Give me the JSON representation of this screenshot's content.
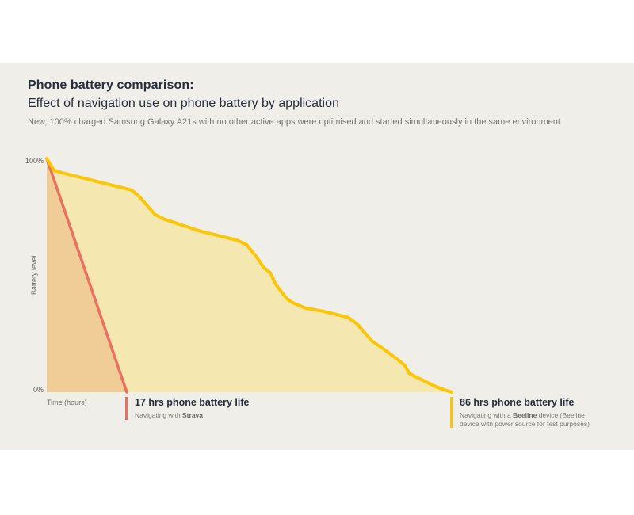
{
  "header": {
    "title": "Phone battery comparison:",
    "subtitle": "Effect of navigation use on phone battery by application",
    "description": "New, 100% charged Samsung Galaxy A21s with no other active apps were optimised and started simultaneously in the same environment."
  },
  "colors": {
    "panel_background": "#F0EEE8",
    "heading_text": "#272D3D",
    "muted_text": "#76756E",
    "strava_line": "#ED6F5F",
    "strava_fill": "#F0CC96",
    "beeline_line": "#FDC504",
    "beeline_fill": "#F4E7AF"
  },
  "chart_data": {
    "type": "area",
    "title": "Phone battery comparison: Effect of navigation use on phone battery by application",
    "xlabel": "Time (hours)",
    "ylabel": "Battery level",
    "x_axis": {
      "min": 0,
      "max": 86
    },
    "y_axis": {
      "min": 0,
      "max": 100,
      "top_tick_label": "100%",
      "bottom_tick_label": "0%"
    },
    "grid": false,
    "legend_position": "below-axis-end-labels",
    "series": [
      {
        "name": "Strava",
        "line_color": "#ED6F5F",
        "fill_color": "#F0CC96",
        "end_hour": 17,
        "points_hours_percent": [
          [
            0,
            100
          ],
          [
            17,
            0
          ]
        ],
        "label": {
          "title": "17 hrs phone battery life",
          "sub_prefix": "Navigating with ",
          "sub_bold": "Strava",
          "sub_suffix": ""
        }
      },
      {
        "name": "Beeline",
        "line_color": "#FDC504",
        "fill_color": "#F4E7AF",
        "end_hour": 86,
        "points_hours_percent": [
          [
            0,
            100
          ],
          [
            1.5,
            95
          ],
          [
            3,
            94
          ],
          [
            18,
            86.5
          ],
          [
            19.5,
            84
          ],
          [
            23,
            76
          ],
          [
            25,
            74
          ],
          [
            32.5,
            69
          ],
          [
            40.5,
            65
          ],
          [
            42.5,
            63
          ],
          [
            44.5,
            58
          ],
          [
            46,
            53.5
          ],
          [
            47.5,
            51
          ],
          [
            48.5,
            46.5
          ],
          [
            50,
            42.5
          ],
          [
            51,
            40
          ],
          [
            52.5,
            38
          ],
          [
            55,
            36
          ],
          [
            59,
            34.5
          ],
          [
            64,
            32
          ],
          [
            66,
            29
          ],
          [
            67.5,
            25.5
          ],
          [
            69,
            22
          ],
          [
            71.5,
            18.5
          ],
          [
            74.5,
            14
          ],
          [
            76,
            11.5
          ],
          [
            77,
            8
          ],
          [
            80,
            5
          ],
          [
            82.5,
            2.5
          ],
          [
            84.5,
            1
          ],
          [
            86,
            0
          ]
        ],
        "label": {
          "title": "86 hrs phone battery life",
          "sub_prefix": "Navigating with a ",
          "sub_bold": "Beeline",
          "sub_suffix": " device (Beeline device with power source for test purposes)"
        }
      }
    ]
  }
}
